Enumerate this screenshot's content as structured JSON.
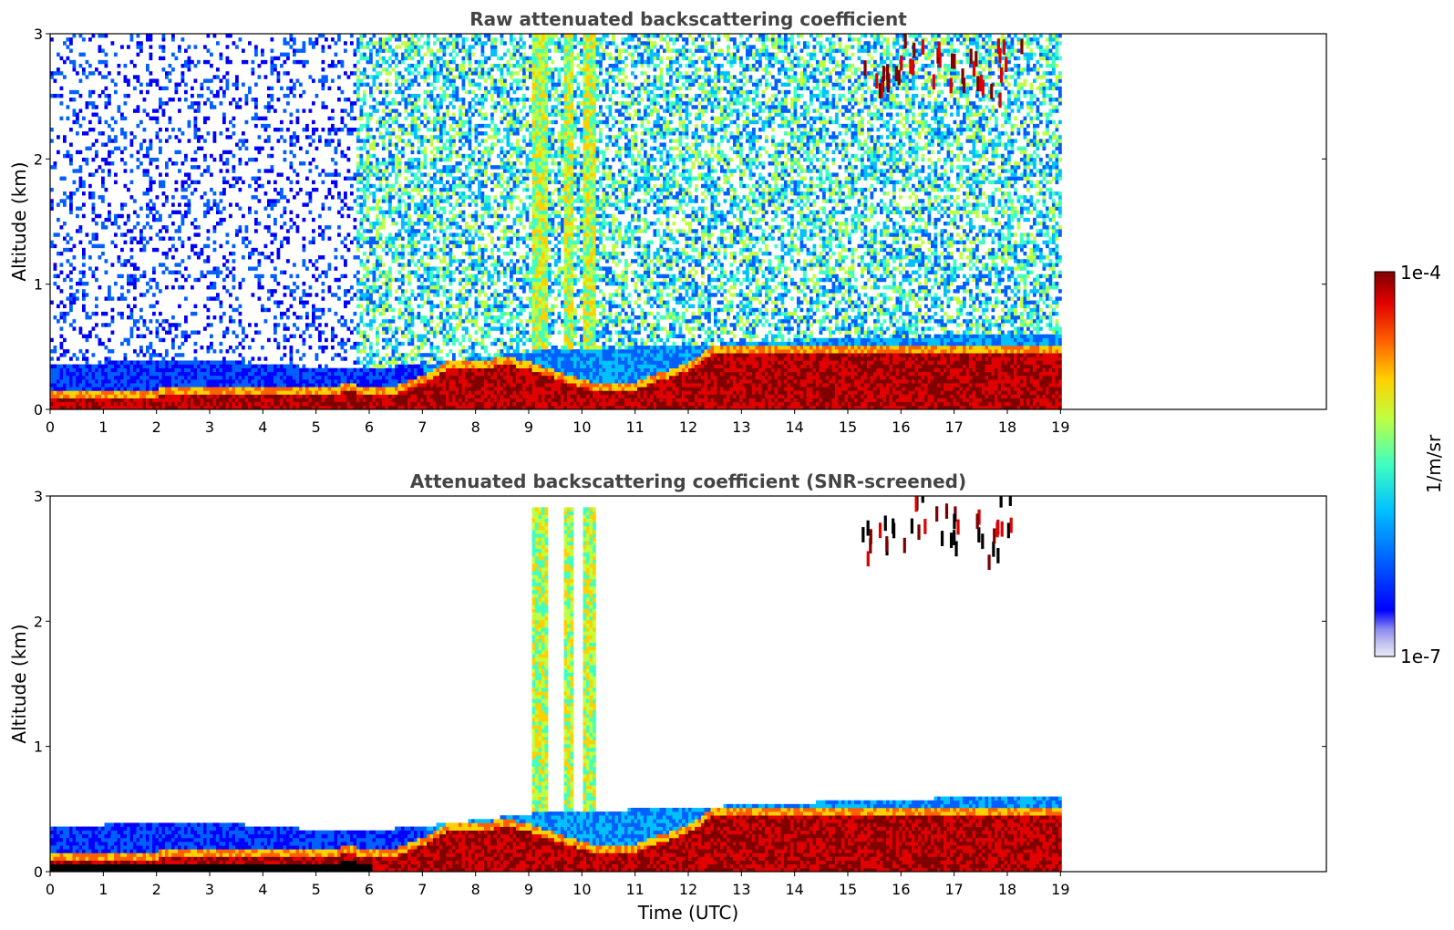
{
  "chart_data": [
    {
      "type": "heatmap",
      "title": "Raw attenuated backscattering coefficient",
      "ylabel": "Altitude (km)",
      "xlabel": "",
      "x_ticks": [
        "0",
        "1",
        "2",
        "3",
        "4",
        "5",
        "6",
        "7",
        "8",
        "9",
        "10",
        "11",
        "12",
        "13",
        "14",
        "15",
        "16",
        "17",
        "18",
        "19"
      ],
      "y_ticks": [
        "0",
        "1",
        "2",
        "3"
      ],
      "xlim": [
        0,
        24
      ],
      "ylim": [
        0,
        3
      ],
      "data_end_hour": 19,
      "features": {
        "surface_layer": [
          [
            0,
            0.07
          ],
          [
            1,
            0.08
          ],
          [
            2,
            0.09
          ],
          [
            3,
            0.1
          ],
          [
            4,
            0.09
          ],
          [
            5,
            0.1
          ],
          [
            5.6,
            0.13
          ],
          [
            6,
            0.1
          ],
          [
            6.5,
            0.12
          ],
          [
            7,
            0.2
          ],
          [
            7.5,
            0.32
          ],
          [
            8,
            0.3
          ],
          [
            8.5,
            0.35
          ],
          [
            9,
            0.3
          ],
          [
            10.3,
            0.12
          ],
          [
            11,
            0.15
          ],
          [
            12,
            0.3
          ],
          [
            12.5,
            0.45
          ],
          [
            13,
            0.45
          ]
        ],
        "boundary_layer_top": [
          [
            0,
            0.35
          ],
          [
            3,
            0.38
          ],
          [
            5.6,
            0.3
          ],
          [
            7,
            0.35
          ],
          [
            9,
            0.45
          ],
          [
            12,
            0.5
          ],
          [
            15,
            0.55
          ],
          [
            19,
            0.6
          ]
        ],
        "dust_column_hours": [
          [
            9.0,
            9.35
          ],
          [
            9.6,
            9.8
          ],
          [
            10.0,
            10.25
          ]
        ],
        "high_cloud": [
          [
            15.5,
            2.4
          ],
          [
            15.8,
            2.45
          ],
          [
            16.2,
            2.6
          ],
          [
            16.8,
            2.5
          ],
          [
            17.2,
            2.5
          ],
          [
            17.6,
            2.35
          ],
          [
            18.0,
            2.6
          ]
        ]
      }
    },
    {
      "type": "heatmap",
      "title": "Attenuated backscattering coefficient (SNR-screened)",
      "ylabel": "Altitude (km)",
      "xlabel": "Time (UTC)",
      "x_ticks": [
        "0",
        "1",
        "2",
        "3",
        "4",
        "5",
        "6",
        "7",
        "8",
        "9",
        "10",
        "11",
        "12",
        "13",
        "14",
        "15",
        "16",
        "17",
        "18",
        "19"
      ],
      "y_ticks": [
        "0",
        "1",
        "2",
        "3"
      ],
      "xlim": [
        0,
        24
      ],
      "ylim": [
        0,
        3
      ],
      "data_end_hour": 19
    }
  ],
  "colorbar": {
    "label": "1/m/sr",
    "max_label": "1e-4",
    "min_label": "1e-7",
    "colors": [
      "#e8e8f8",
      "#c8c8f0",
      "#8c8cf0",
      "#0000ff",
      "#0060ff",
      "#00c0ff",
      "#40ffc0",
      "#c0ff40",
      "#ffd000",
      "#ff6000",
      "#e00000",
      "#800000"
    ]
  }
}
